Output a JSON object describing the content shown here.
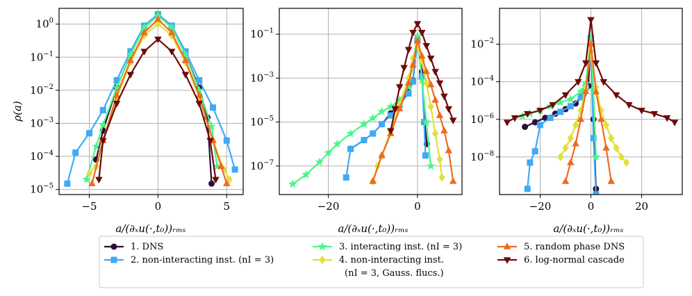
{
  "ylabel": "ρ(a)",
  "xlabel": "a/(∂ₓu(·,t₀))ᵣₘₛ",
  "series_styles": [
    {
      "id": "s1",
      "color": "#2b0f3a",
      "marker": "circle"
    },
    {
      "id": "s2",
      "color": "#3fa9f5",
      "marker": "square"
    },
    {
      "id": "s3",
      "color": "#4cf58a",
      "marker": "star"
    },
    {
      "id": "s4",
      "color": "#e0e03a",
      "marker": "diamond"
    },
    {
      "id": "s5",
      "color": "#f06a1c",
      "marker": "triangle-up"
    },
    {
      "id": "s6",
      "color": "#6e0a0a",
      "marker": "triangle-down"
    }
  ],
  "legend": [
    {
      "label": "1. DNS"
    },
    {
      "label": "2. non-interacting inst. (nI = 3)"
    },
    {
      "label": "3. interacting inst. (nI = 3)"
    },
    {
      "label": "4. non-interacting inst.",
      "label2": "(nI = 3, Gauss. flucs.)"
    },
    {
      "label": "5. random phase DNS"
    },
    {
      "label": "6. log-normal cascade"
    }
  ],
  "chart_data": [
    {
      "type": "line",
      "yscale": "log",
      "xlim": [
        -7.2,
        6.2
      ],
      "ylim": [
        7e-06,
        3
      ],
      "xticks": [
        -5,
        0,
        5
      ],
      "xtick_labels": [
        "−5",
        "0",
        "5"
      ],
      "yticks": [
        1e-05,
        0.0001,
        0.001,
        0.01,
        0.1,
        1
      ],
      "ytick_labels": [
        "10^-5",
        "10^-4",
        "10^-3",
        "10^-2",
        "10^-1",
        "10^0"
      ],
      "grid": true,
      "series": [
        {
          "name": "1. DNS",
          "x": [
            -4.5,
            -4,
            -3,
            -2,
            -1,
            0,
            1,
            2,
            3,
            3.6,
            3.9
          ],
          "y": [
            8e-05,
            0.0006,
            0.012,
            0.12,
            0.8,
            1.9,
            0.8,
            0.12,
            0.012,
            0.0015,
            1.5e-05
          ]
        },
        {
          "name": "2. non-interacting inst. (nI = 3)",
          "x": [
            -6.6,
            -6,
            -5,
            -4,
            -3,
            -2,
            -1,
            0,
            1,
            2,
            3,
            4,
            5,
            5.6
          ],
          "y": [
            1.5e-05,
            0.00013,
            0.0005,
            0.0025,
            0.02,
            0.15,
            0.9,
            2.0,
            0.9,
            0.15,
            0.02,
            0.003,
            0.0003,
            4e-05
          ]
        },
        {
          "name": "3. interacting inst. (nI = 3)",
          "x": [
            -5.2,
            -4.5,
            -4,
            -3,
            -2,
            -1,
            0,
            1,
            2,
            3,
            3.9,
            4.3
          ],
          "y": [
            2e-05,
            0.0002,
            0.0009,
            0.012,
            0.12,
            0.8,
            1.8,
            0.8,
            0.12,
            0.01,
            0.0008,
            5e-05
          ]
        },
        {
          "name": "4. non-interacting inst. (nI = 3, Gauss. flucs.)",
          "x": [
            -5,
            -4.5,
            -4,
            -3,
            -2,
            -1,
            0,
            1,
            2,
            3,
            4,
            4.8,
            5.2
          ],
          "y": [
            3e-05,
            5e-05,
            0.0003,
            0.006,
            0.07,
            0.45,
            1.0,
            0.45,
            0.07,
            0.006,
            0.0003,
            4e-05,
            2e-05
          ]
        },
        {
          "name": "5. random phase DNS",
          "x": [
            -4.8,
            -4,
            -3,
            -2,
            -1,
            0,
            1,
            2,
            3,
            4,
            4.6,
            5
          ],
          "y": [
            1.5e-05,
            0.0003,
            0.007,
            0.08,
            0.55,
            1.4,
            0.55,
            0.08,
            0.007,
            0.0003,
            5e-05,
            1.5e-05
          ]
        },
        {
          "name": "6. log-normal cascade",
          "x": [
            -4.3,
            -4,
            -3,
            -2,
            -1,
            0,
            1,
            2,
            3,
            3.8,
            4.2
          ],
          "y": [
            2e-05,
            0.0003,
            0.004,
            0.03,
            0.15,
            0.35,
            0.15,
            0.03,
            0.004,
            0.0003,
            2e-05
          ]
        }
      ]
    },
    {
      "type": "line",
      "yscale": "log",
      "xlim": [
        -31,
        10
      ],
      "ylim": [
        5e-09,
        1.5
      ],
      "xticks": [
        -20,
        0
      ],
      "xtick_labels": [
        "−20",
        "0"
      ],
      "yticks": [
        1e-07,
        1e-05,
        0.001,
        0.1
      ],
      "ytick_labels": [
        "10^-7",
        "10^-5",
        "10^-3",
        "10^-1"
      ],
      "grid": true,
      "series": [
        {
          "name": "1. DNS",
          "x": [
            -15,
            -12,
            -10,
            -8,
            -6,
            -4,
            -2,
            -1,
            0,
            1,
            1.6,
            2.1
          ],
          "y": [
            6e-07,
            1.5e-06,
            3e-06,
            8e-06,
            2.5e-05,
            7e-05,
            0.00025,
            0.0008,
            0.06,
            0.002,
            1e-05,
            1e-06
          ]
        },
        {
          "name": "2. non-interacting inst. (nI = 3)",
          "x": [
            -16,
            -15,
            -12,
            -10,
            -8,
            -6,
            -4,
            -2,
            -1,
            0,
            1,
            1.5,
            1.8
          ],
          "y": [
            3e-08,
            6e-07,
            1.5e-06,
            3e-06,
            8e-06,
            2e-05,
            6e-05,
            0.0002,
            0.0007,
            0.05,
            0.0012,
            1e-05,
            3e-07
          ]
        },
        {
          "name": "3. interacting inst. (nI = 3)",
          "x": [
            -28,
            -25,
            -22,
            -20,
            -18,
            -15,
            -12,
            -10,
            -8,
            -6,
            -4,
            -2,
            0,
            1,
            2,
            3
          ],
          "y": [
            1.5e-08,
            4e-08,
            1.5e-07,
            4e-07,
            1e-06,
            3e-06,
            8e-06,
            1.5e-05,
            3e-05,
            5e-05,
            0.0001,
            0.0004,
            0.08,
            0.0008,
            1e-05,
            1e-07
          ]
        },
        {
          "name": "4. non-interacting inst. (nI = 3, Gauss. flucs.)",
          "x": [
            -10,
            -9,
            -8,
            -6,
            -4,
            -2,
            -1,
            0,
            1,
            2,
            3,
            4,
            5,
            5.5
          ],
          "y": [
            2e-08,
            1e-07,
            3e-07,
            4e-06,
            6e-05,
            0.001,
            0.008,
            0.03,
            0.006,
            0.0006,
            5e-05,
            3e-06,
            2e-07,
            3e-08
          ]
        },
        {
          "name": "5. random phase DNS",
          "x": [
            -10,
            -8,
            -6,
            -4,
            -2,
            -1,
            0,
            1,
            2,
            3,
            4,
            5,
            6,
            7,
            8
          ],
          "y": [
            2e-08,
            3e-07,
            3e-06,
            4e-05,
            0.0006,
            0.004,
            0.05,
            0.01,
            0.002,
            0.0005,
            0.0001,
            2e-05,
            4e-06,
            5e-07,
            2e-08
          ]
        },
        {
          "name": "6. log-normal cascade",
          "x": [
            -6,
            -5,
            -4,
            -3,
            -2,
            -1,
            0,
            1,
            2,
            3,
            4,
            5,
            6,
            7,
            8
          ],
          "y": [
            4e-06,
            4e-05,
            0.0004,
            0.003,
            0.02,
            0.12,
            0.3,
            0.12,
            0.03,
            0.008,
            0.002,
            0.0006,
            0.00015,
            4e-05,
            1.2e-05
          ]
        }
      ]
    },
    {
      "type": "line",
      "yscale": "log",
      "xlim": [
        -36,
        36
      ],
      "ylim": [
        1e-10,
        0.8
      ],
      "xticks": [
        -20,
        0,
        20
      ],
      "xtick_labels": [
        "−20",
        "0",
        "20"
      ],
      "yticks": [
        1e-08,
        1e-06,
        0.0001,
        0.01
      ],
      "ytick_labels": [
        "10^-8",
        "10^-6",
        "10^-4",
        "10^-2"
      ],
      "grid": true,
      "series": [
        {
          "name": "1. DNS",
          "x": [
            -26,
            -22,
            -18,
            -14,
            -10,
            -6,
            -3,
            -1,
            0,
            1,
            2
          ],
          "y": [
            4e-07,
            7e-07,
            1.2e-06,
            2e-06,
            3.5e-06,
            7e-06,
            2e-05,
            6e-05,
            0.02,
            1e-06,
            2e-10
          ]
        },
        {
          "name": "2. non-interacting inst. (nI = 3)",
          "x": [
            -25,
            -24,
            -22,
            -20,
            -16,
            -12,
            -8,
            -4,
            -2,
            0,
            1,
            2
          ],
          "y": [
            2e-10,
            5e-09,
            2e-08,
            5e-07,
            1.2e-06,
            2.5e-06,
            5e-06,
            1.5e-05,
            5e-05,
            0.02,
            1e-07,
            1e-10
          ]
        },
        {
          "name": "3. interacting inst. (nI = 3)",
          "x": [
            -27,
            -24,
            -20,
            -16,
            -12,
            -8,
            -4,
            -2,
            0,
            1,
            2
          ],
          "y": [
            1.5e-06,
            2e-06,
            3e-06,
            5e-06,
            8e-06,
            1.2e-05,
            3e-05,
            8e-05,
            0.025,
            3e-05,
            1e-08
          ]
        },
        {
          "name": "4. non-interacting inst. (nI = 3, Gauss. flucs.)",
          "x": [
            -12,
            -10,
            -8,
            -6,
            -4,
            -2,
            0,
            2,
            4,
            6,
            8,
            10,
            12,
            14
          ],
          "y": [
            1e-08,
            3e-08,
            1e-07,
            5e-07,
            3e-06,
            5e-05,
            0.004,
            5e-05,
            3e-06,
            5e-07,
            1e-07,
            3e-08,
            1e-08,
            5e-09
          ]
        },
        {
          "name": "5. random phase DNS",
          "x": [
            -10,
            -8,
            -6,
            -4,
            -2,
            0,
            2,
            4,
            6,
            8
          ],
          "y": [
            5e-10,
            5e-09,
            5e-08,
            1e-06,
            3e-05,
            0.01,
            3e-05,
            1e-06,
            3e-08,
            5e-10
          ]
        },
        {
          "name": "6. log-normal cascade",
          "x": [
            -33,
            -30,
            -25,
            -20,
            -15,
            -10,
            -5,
            -2,
            0,
            2,
            5,
            10,
            15,
            20,
            25,
            30,
            33
          ],
          "y": [
            7e-07,
            1.2e-06,
            2e-06,
            3e-06,
            6e-06,
            2e-05,
            0.0001,
            0.001,
            0.2,
            0.001,
            0.0001,
            2e-05,
            6e-06,
            3e-06,
            2e-06,
            1.2e-06,
            7e-07
          ]
        }
      ]
    }
  ]
}
